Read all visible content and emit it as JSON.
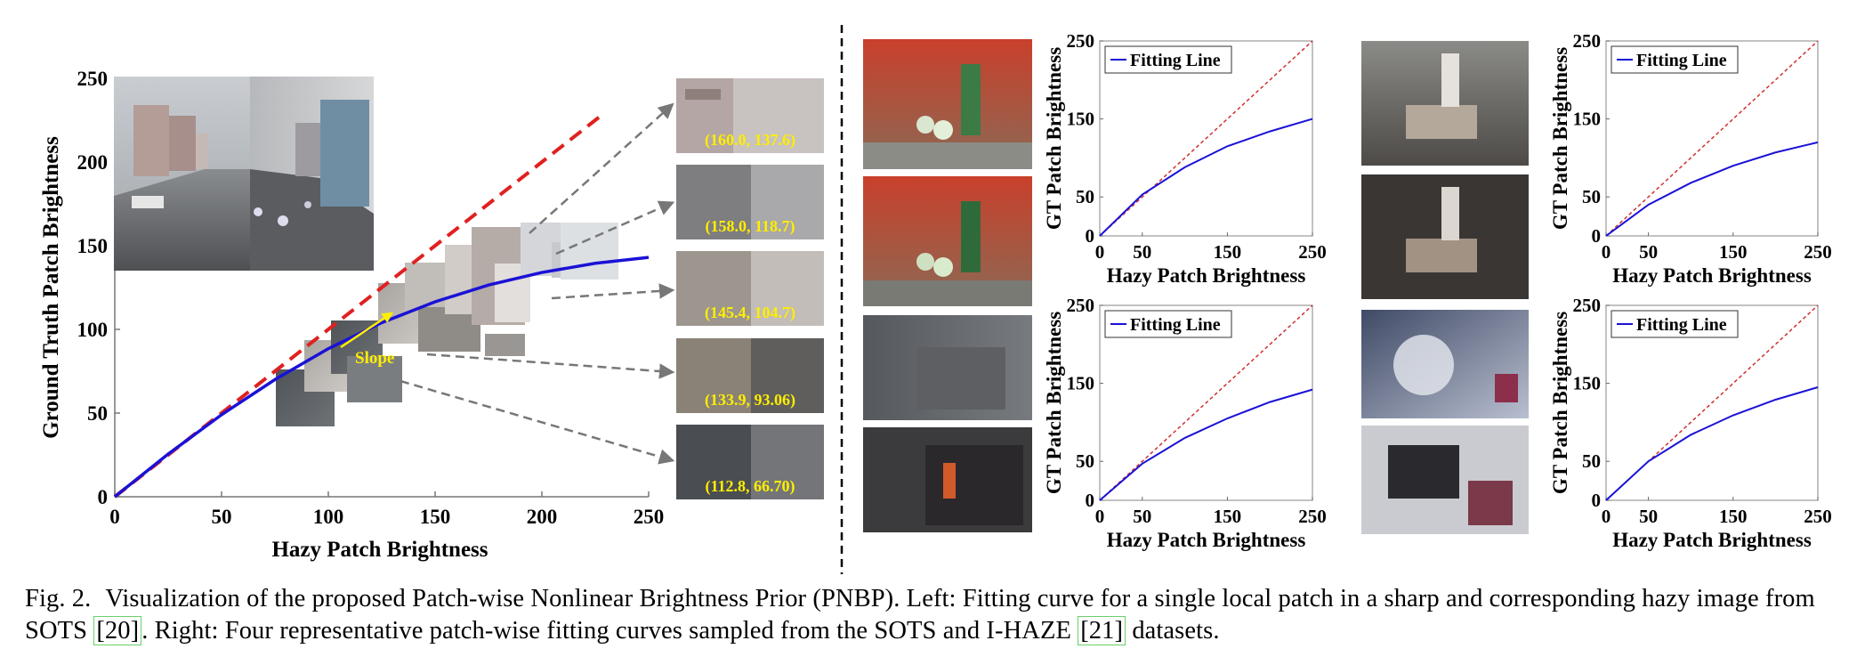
{
  "caption": {
    "label": "Fig. 2.",
    "text_1": "Visualization of the proposed Patch-wise Nonlinear Brightness Prior (PNBP). Left: Fitting curve for a single local patch in a sharp and corresponding hazy image from SOTS ",
    "cite_1": "[20]",
    "text_2": ". Right: Four representative patch-wise fitting curves sampled from the SOTS and I-HAZE ",
    "cite_2": "[21]",
    "text_3": " datasets."
  },
  "left_plot": {
    "xlabel": "Hazy Patch Brightness",
    "ylabel": "Ground Truth Patch Brightness",
    "slope_label": "Slope",
    "patch_values": [
      "(160.0, 137.6)",
      "(158.0, 118.7)",
      "(145.4, 104.7)",
      "(133.9, 93.06)",
      "(112.8, 66.70)"
    ]
  },
  "colors": {
    "curve": "#1a12d6",
    "reference_dashed": "#e02020",
    "small_reference": "#d03030",
    "annotation": "#ffee00",
    "arrow": "#777777"
  },
  "right_plots": {
    "ylabel": "GT Patch Brightness",
    "xlabel": "Hazy Patch Brightness",
    "legend": "Fitting Line"
  },
  "chart_data": [
    {
      "type": "line",
      "id": "left",
      "xlabel": "Hazy Patch Brightness",
      "ylabel": "Ground Truth Patch Brightness",
      "xlim": [
        0,
        250
      ],
      "ylim": [
        0,
        250
      ],
      "xticks": [
        0,
        50,
        100,
        150,
        200,
        250
      ],
      "yticks": [
        0,
        50,
        100,
        150,
        200,
        250
      ],
      "series": [
        {
          "style": "solid",
          "x": [
            0,
            25,
            50,
            75,
            100,
            125,
            150,
            175,
            200,
            225,
            250
          ],
          "y": [
            0,
            25.5,
            49,
            70,
            88.5,
            104,
            116.5,
            126.5,
            134,
            139.5,
            143
          ]
        },
        {
          "style": "dashed",
          "x": [
            0,
            228
          ],
          "y": [
            0,
            228
          ]
        }
      ]
    },
    {
      "type": "line",
      "id": "r1",
      "xlabel": "Hazy Patch Brightness",
      "ylabel": "GT Patch Brightness",
      "xlim": [
        0,
        250
      ],
      "ylim": [
        0,
        250
      ],
      "xticks": [
        0,
        50,
        150,
        250
      ],
      "yticks": [
        0,
        50,
        150,
        250
      ],
      "legend": "Fitting Line",
      "series": [
        {
          "name": "Fitting Line",
          "x": [
            0,
            50,
            100,
            150,
            200,
            250
          ],
          "y": [
            0,
            53,
            88,
            115,
            134,
            150
          ]
        },
        {
          "style": "dashed",
          "x": [
            0,
            250
          ],
          "y": [
            0,
            250
          ]
        }
      ]
    },
    {
      "type": "line",
      "id": "r2",
      "xlabel": "Hazy Patch Brightness",
      "ylabel": "GT Patch Brightness",
      "xlim": [
        0,
        250
      ],
      "ylim": [
        0,
        250
      ],
      "xticks": [
        0,
        50,
        150,
        250
      ],
      "yticks": [
        0,
        50,
        150,
        250
      ],
      "legend": "Fitting Line",
      "series": [
        {
          "name": "Fitting Line",
          "x": [
            0,
            50,
            100,
            150,
            200,
            250
          ],
          "y": [
            0,
            40,
            68,
            90,
            107,
            120
          ]
        },
        {
          "style": "dashed",
          "x": [
            0,
            250
          ],
          "y": [
            0,
            250
          ]
        }
      ]
    },
    {
      "type": "line",
      "id": "r3",
      "xlabel": "Hazy Patch Brightness",
      "ylabel": "GT Patch Brightness",
      "xlim": [
        0,
        250
      ],
      "ylim": [
        0,
        250
      ],
      "xticks": [
        0,
        50,
        150,
        250
      ],
      "yticks": [
        0,
        50,
        150,
        250
      ],
      "legend": "Fitting Line",
      "series": [
        {
          "name": "Fitting Line",
          "x": [
            0,
            50,
            100,
            150,
            200,
            250
          ],
          "y": [
            0,
            47,
            80,
            105,
            126,
            142
          ]
        },
        {
          "style": "dashed",
          "x": [
            0,
            250
          ],
          "y": [
            0,
            250
          ]
        }
      ]
    },
    {
      "type": "line",
      "id": "r4",
      "xlabel": "Hazy Patch Brightness",
      "ylabel": "GT Patch Brightness",
      "xlim": [
        0,
        250
      ],
      "ylim": [
        0,
        250
      ],
      "xticks": [
        0,
        50,
        150,
        250
      ],
      "yticks": [
        0,
        50,
        150,
        250
      ],
      "legend": "Fitting Line",
      "series": [
        {
          "name": "Fitting Line",
          "x": [
            0,
            50,
            100,
            150,
            200,
            250
          ],
          "y": [
            0,
            50,
            84,
            109,
            129,
            145
          ]
        },
        {
          "style": "dashed",
          "x": [
            0,
            250
          ],
          "y": [
            0,
            250
          ]
        }
      ]
    }
  ]
}
